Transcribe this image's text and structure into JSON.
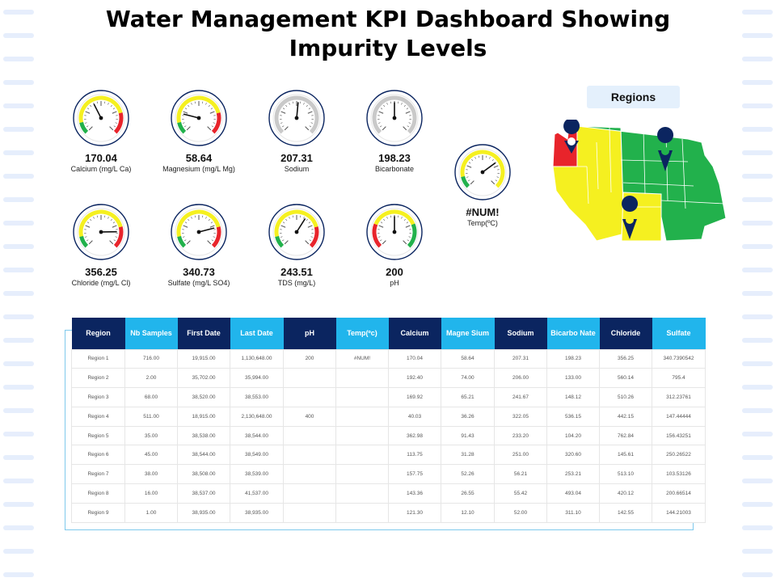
{
  "title": "Water Management KPI Dashboard Showing Impurity Levels",
  "colors": {
    "navy": "#0b2560",
    "cyan": "#21b5ec",
    "red": "#e8242b",
    "yellow": "#f5f020",
    "green": "#22b14c",
    "stripe": "#e6eefc"
  },
  "gauges": [
    {
      "value": "170.04",
      "label": "Calcium (mg/L Ca)",
      "reading": 0.4,
      "scheme": "gyr"
    },
    {
      "value": "58.64",
      "label": "Magnesium (mg/L Mg)",
      "reading": 0.22,
      "scheme": "gyr"
    },
    {
      "value": "207.31",
      "label": "Sodium",
      "reading": 0.52,
      "scheme": "gray"
    },
    {
      "value": "198.23",
      "label": "Bicarbonate",
      "reading": 0.5,
      "scheme": "gray"
    },
    {
      "value": "356.25",
      "label": "Chloride (mg/L Cl)",
      "reading": 0.83,
      "scheme": "gyr"
    },
    {
      "value": "340.73",
      "label": "Sulfate (mg/L SO4)",
      "reading": 0.78,
      "scheme": "gyr"
    },
    {
      "value": "243.51",
      "label": "TDS (mg/L)",
      "reading": 0.62,
      "scheme": "gyr"
    },
    {
      "value": "200",
      "label": "pH",
      "reading": 0.5,
      "scheme": "ryg"
    },
    {
      "value": "#NUM!",
      "label": "Temp(ºC)",
      "reading": 0.7,
      "scheme": "gy"
    }
  ],
  "regions_label": "Regions",
  "table": {
    "headers": [
      {
        "label": "Region",
        "style": "dark"
      },
      {
        "label": "Nb Samples",
        "style": "light"
      },
      {
        "label": "First Date",
        "style": "dark"
      },
      {
        "label": "Last Date",
        "style": "light"
      },
      {
        "label": "pH",
        "style": "dark"
      },
      {
        "label": "Temp(ºc)",
        "style": "light"
      },
      {
        "label": "Calcium",
        "style": "dark"
      },
      {
        "label": "Magne Sium",
        "style": "light"
      },
      {
        "label": "Sodium",
        "style": "dark"
      },
      {
        "label": "Bicarbo Nate",
        "style": "light"
      },
      {
        "label": "Chloride",
        "style": "dark"
      },
      {
        "label": "Sulfate",
        "style": "light"
      }
    ],
    "rows": [
      [
        "Region 1",
        "716.00",
        "19,915.00",
        "1,130,648.00",
        "200",
        "#NUM!",
        "170.04",
        "58.64",
        "207.31",
        "198.23",
        "356.25",
        "340.7390542"
      ],
      [
        "Region 2",
        "2.00",
        "35,702.00",
        "35,994.00",
        "",
        "",
        "192.40",
        "74.00",
        "206.00",
        "133.00",
        "560.14",
        "795.4"
      ],
      [
        "Region 3",
        "68.00",
        "38,520.00",
        "38,553.00",
        "",
        "",
        "169.92",
        "65.21",
        "241.67",
        "148.12",
        "510.26",
        "312.23761"
      ],
      [
        "Region 4",
        "511.00",
        "18,915.00",
        "2,130,648.00",
        "400",
        "",
        "40.03",
        "36.26",
        "322.05",
        "536.15",
        "442.15",
        "147.44444"
      ],
      [
        "Region 5",
        "35.00",
        "38,538.00",
        "38,544.00",
        "",
        "",
        "362.98",
        "91.43",
        "233.20",
        "104.20",
        "762.84",
        "156.43251"
      ],
      [
        "Region 6",
        "45.00",
        "38,544.00",
        "38,549.00",
        "",
        "",
        "113.75",
        "31.28",
        "251.00",
        "320.60",
        "145.61",
        "250.26522"
      ],
      [
        "Region 7",
        "38.00",
        "38,508.00",
        "38,539.00",
        "",
        "",
        "157.75",
        "52.26",
        "56.21",
        "253.21",
        "513.10",
        "103.53126"
      ],
      [
        "Region 8",
        "16.00",
        "38,537.00",
        "41,537.00",
        "",
        "",
        "143.36",
        "26.55",
        "55.42",
        "493.04",
        "420.12",
        "200.66514"
      ],
      [
        "Region 9",
        "1.00",
        "38,935.00",
        "38,935.00",
        "",
        "",
        "121.30",
        "12.10",
        "52.00",
        "311.10",
        "142.55",
        "144.21003"
      ]
    ]
  }
}
